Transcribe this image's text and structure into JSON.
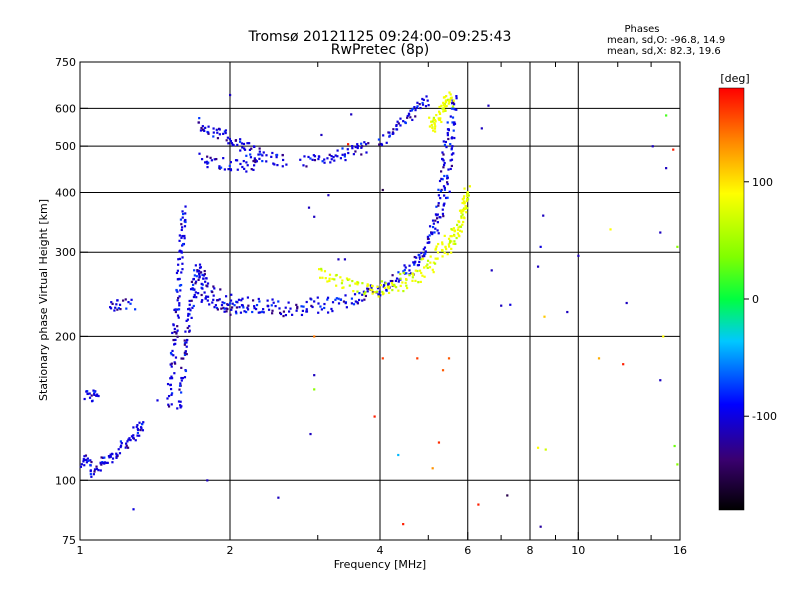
{
  "chart_data": {
    "type": "scatter",
    "title": "Tromsø 20121125 09:24:00–09:25:43",
    "subtitle": "RwPretec (8p)",
    "xlabel": "Frequency [MHz]",
    "ylabel": "Stationary phase Virtual Height [km]",
    "x_scale": "log",
    "y_scale": "log",
    "xlim": [
      1,
      16
    ],
    "ylim": [
      75,
      750
    ],
    "x_ticks": [
      1,
      2,
      4,
      6,
      8,
      10,
      16
    ],
    "x_tick_labels": [
      "1",
      "2",
      "4",
      "6",
      "8",
      "10",
      "16"
    ],
    "x_minor_ticks": [
      3,
      5,
      7,
      9,
      12,
      14
    ],
    "y_ticks": [
      75,
      100,
      200,
      300,
      400,
      500,
      600,
      750
    ],
    "y_tick_labels": [
      "75",
      "100",
      "200",
      "300",
      "400",
      "500",
      "600",
      "750"
    ],
    "grid": true,
    "phase_stats": {
      "heading": "Phases",
      "o_line": "mean, sd,O: -96.8, 14.9",
      "x_line": "mean, sd,X: 82.3, 19.6"
    },
    "colorbar": {
      "label": "[deg]",
      "range": [
        -180,
        180
      ],
      "ticks": [
        100,
        0,
        -100
      ],
      "tick_labels": [
        "100",
        "0",
        "-100"
      ]
    },
    "series": [
      {
        "traces": [
          {
            "x": [
              1.0,
              1.03,
              1.06,
              1.1,
              1.14,
              1.18,
              1.22,
              1.27,
              1.31,
              1.34
            ],
            "y": [
              108,
              112,
              104,
              108,
              110,
              114,
              118,
              124,
              128,
              131
            ]
          },
          {
            "x": [
              1.03,
              1.06,
              1.08
            ],
            "y": [
              150,
              152,
              148
            ]
          },
          {
            "x": [
              1.15,
              1.2,
              1.29
            ],
            "y": [
              236,
              232,
              235
            ]
          },
          {
            "x": [
              1.51,
              1.52,
              1.54,
              1.55,
              1.56,
              1.57,
              1.58,
              1.59,
              1.6,
              1.61,
              1.62
            ],
            "y": [
              145,
              160,
              180,
              200,
              220,
              240,
              265,
              290,
              320,
              345,
              370
            ]
          },
          {
            "x": [
              1.58,
              1.6,
              1.62,
              1.64,
              1.66,
              1.68,
              1.7,
              1.72,
              1.75,
              1.8
            ],
            "y": [
              140,
              160,
              180,
              200,
              220,
              240,
              260,
              275,
              270,
              260
            ]
          },
          {
            "x": [
              1.7,
              1.8,
              1.9,
              2.0,
              2.1,
              2.3,
              2.5,
              2.8,
              3.2,
              3.6,
              4.0,
              4.4,
              4.8,
              5.1,
              5.3,
              5.45,
              5.55,
              5.6,
              5.62,
              5.64
            ],
            "y": [
              250,
              237,
              231,
              228,
              227,
              226,
              226,
              228,
              232,
              240,
              252,
              268,
              290,
              320,
              360,
              400,
              460,
              520,
              590,
              650
            ]
          },
          {
            "x": [
              1.75,
              1.85,
              2.0,
              2.2,
              2.5,
              2.9,
              3.3,
              3.8,
              4.2,
              4.6,
              4.9,
              5.1,
              5.25,
              5.35,
              5.42,
              5.46
            ],
            "y": [
              262,
              247,
              238,
              234,
              232,
              233,
              238,
              246,
              258,
              275,
              300,
              340,
              390,
              440,
              500,
              560
            ]
          },
          {
            "x": [
              1.72,
              1.8,
              1.9,
              2.0,
              2.1,
              2.2,
              2.3,
              2.45,
              2.6
            ],
            "y": [
              560,
              545,
              530,
              520,
              500,
              490,
              478,
              470,
              465
            ]
          },
          {
            "x": [
              1.75,
              1.85,
              2.0,
              2.15,
              2.3
            ],
            "y": [
              470,
              462,
              458,
              455,
              452
            ]
          },
          {
            "x": [
              2.8,
              3.0,
              3.2,
              3.4,
              3.6,
              3.8
            ],
            "y": [
              462,
              468,
              476,
              482,
              490,
              498
            ]
          },
          {
            "x": [
              4.0,
              4.2,
              4.4,
              4.6,
              4.8,
              5.0
            ],
            "y": [
              510,
              530,
              555,
              580,
              605,
              630
            ]
          }
        ]
      },
      {
        "traces": [
          {
            "x": [
              3.0,
              3.2,
              3.4,
              3.6,
              3.8,
              4.0,
              4.4,
              4.8,
              5.2,
              5.5,
              5.7,
              5.85,
              5.95,
              6.0
            ],
            "y": [
              272,
              265,
              258,
              252,
              250,
              249,
              255,
              268,
              286,
              305,
              325,
              350,
              380,
              410
            ]
          },
          {
            "x": [
              4.0,
              4.4,
              4.8,
              5.2,
              5.5,
              5.75,
              5.9,
              5.95
            ],
            "y": [
              252,
              262,
              280,
              300,
              320,
              345,
              370,
              395
            ]
          },
          {
            "x": [
              5.05,
              5.15,
              5.25,
              5.35,
              5.4,
              5.5,
              5.6
            ],
            "y": [
              560,
              548,
              575,
              600,
              620,
              640,
              600
            ]
          }
        ]
      }
    ],
    "scattered_points": [
      {
        "x": 1.28,
        "y": 87,
        "phase": -100
      },
      {
        "x": 1.43,
        "y": 147,
        "phase": -100
      },
      {
        "x": 1.8,
        "y": 100,
        "phase": -110
      },
      {
        "x": 2.0,
        "y": 640,
        "phase": -110
      },
      {
        "x": 2.5,
        "y": 92,
        "phase": -110
      },
      {
        "x": 2.85,
        "y": 228,
        "phase": -100
      },
      {
        "x": 2.9,
        "y": 240,
        "phase": -110
      },
      {
        "x": 2.95,
        "y": 200,
        "phase": 140
      },
      {
        "x": 2.95,
        "y": 166,
        "phase": -110
      },
      {
        "x": 2.95,
        "y": 155,
        "phase": 40
      },
      {
        "x": 2.9,
        "y": 125,
        "phase": -110
      },
      {
        "x": 2.88,
        "y": 372,
        "phase": -110
      },
      {
        "x": 2.95,
        "y": 356,
        "phase": -110
      },
      {
        "x": 3.15,
        "y": 395,
        "phase": -110
      },
      {
        "x": 3.3,
        "y": 290,
        "phase": -110
      },
      {
        "x": 3.4,
        "y": 290,
        "phase": -110
      },
      {
        "x": 3.5,
        "y": 583,
        "phase": -110
      },
      {
        "x": 3.05,
        "y": 528,
        "phase": -110
      },
      {
        "x": 3.45,
        "y": 505,
        "phase": 170
      },
      {
        "x": 3.9,
        "y": 136,
        "phase": 170
      },
      {
        "x": 4.05,
        "y": 405,
        "phase": -150
      },
      {
        "x": 4.05,
        "y": 180,
        "phase": 160
      },
      {
        "x": 4.35,
        "y": 113,
        "phase": -40
      },
      {
        "x": 4.45,
        "y": 81,
        "phase": 170
      },
      {
        "x": 4.75,
        "y": 180,
        "phase": 160
      },
      {
        "x": 5.1,
        "y": 106,
        "phase": 130
      },
      {
        "x": 5.35,
        "y": 170,
        "phase": 150
      },
      {
        "x": 5.25,
        "y": 120,
        "phase": 165
      },
      {
        "x": 5.5,
        "y": 180,
        "phase": 150
      },
      {
        "x": 6.3,
        "y": 89,
        "phase": 170
      },
      {
        "x": 6.7,
        "y": 275,
        "phase": -110
      },
      {
        "x": 6.4,
        "y": 545,
        "phase": -110
      },
      {
        "x": 6.6,
        "y": 608,
        "phase": -110
      },
      {
        "x": 7.2,
        "y": 93,
        "phase": -150
      },
      {
        "x": 7.0,
        "y": 232,
        "phase": -110
      },
      {
        "x": 7.3,
        "y": 233,
        "phase": -100
      },
      {
        "x": 8.3,
        "y": 117,
        "phase": 90
      },
      {
        "x": 8.6,
        "y": 116,
        "phase": 70
      },
      {
        "x": 8.3,
        "y": 280,
        "phase": -110
      },
      {
        "x": 8.4,
        "y": 308,
        "phase": -100
      },
      {
        "x": 8.5,
        "y": 358,
        "phase": -110
      },
      {
        "x": 8.55,
        "y": 220,
        "phase": 110
      },
      {
        "x": 8.4,
        "y": 80,
        "phase": -120
      },
      {
        "x": 9.5,
        "y": 225,
        "phase": -110
      },
      {
        "x": 10.0,
        "y": 295,
        "phase": -110
      },
      {
        "x": 11.0,
        "y": 180,
        "phase": 120
      },
      {
        "x": 11.6,
        "y": 335,
        "phase": 90
      },
      {
        "x": 12.3,
        "y": 175,
        "phase": 170
      },
      {
        "x": 12.5,
        "y": 235,
        "phase": -110
      },
      {
        "x": 14.1,
        "y": 500,
        "phase": -110
      },
      {
        "x": 14.6,
        "y": 162,
        "phase": -110
      },
      {
        "x": 14.6,
        "y": 330,
        "phase": -110
      },
      {
        "x": 14.8,
        "y": 200,
        "phase": 90
      },
      {
        "x": 15.0,
        "y": 450,
        "phase": -110
      },
      {
        "x": 15.0,
        "y": 580,
        "phase": 20
      },
      {
        "x": 15.8,
        "y": 108,
        "phase": 40
      },
      {
        "x": 15.8,
        "y": 308,
        "phase": 40
      },
      {
        "x": 15.5,
        "y": 492,
        "phase": 170
      },
      {
        "x": 15.6,
        "y": 118,
        "phase": 30
      }
    ]
  }
}
